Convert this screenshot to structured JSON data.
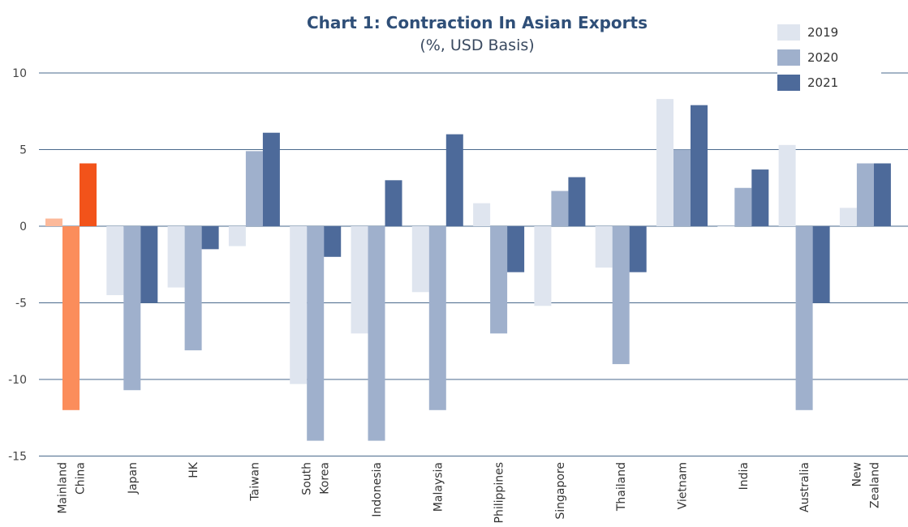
{
  "chart_data": {
    "type": "bar",
    "title": "Chart 1: Contraction In Asian Exports",
    "subtitle": "(%, USD Basis)",
    "xlabel": "",
    "ylabel": "",
    "ylim": [
      -15,
      10
    ],
    "yticks": [
      "10",
      "5",
      "0",
      "-5",
      "-10",
      "-15"
    ],
    "grid": true,
    "legend": "top-right",
    "categories": [
      [
        "Mainland",
        "China"
      ],
      [
        "Japan"
      ],
      [
        "HK"
      ],
      [
        "Taiwan"
      ],
      [
        "South",
        "Korea"
      ],
      [
        "Indonesia"
      ],
      [
        "Malaysia"
      ],
      [
        "Philippines"
      ],
      [
        "Singapore"
      ],
      [
        "Thailand"
      ],
      [
        "Vietnam"
      ],
      [
        "India"
      ],
      [
        "Australia"
      ],
      [
        "New",
        "Zealand"
      ]
    ],
    "series": [
      {
        "name": "2019",
        "color": "#dfe5ef",
        "values": [
          0.5,
          -4.5,
          -4.0,
          -1.3,
          -10.3,
          -7.0,
          -4.3,
          1.5,
          -5.2,
          -2.7,
          8.3,
          0.0,
          5.3,
          1.2
        ]
      },
      {
        "name": "2020",
        "color": "#9fb0cc",
        "values": [
          -12.0,
          -10.7,
          -8.1,
          4.9,
          -14.0,
          -14.0,
          -12.0,
          -7.0,
          2.3,
          -9.0,
          5.0,
          2.5,
          -12.0,
          4.1
        ]
      },
      {
        "name": "2021",
        "color": "#4d6a9a",
        "values": [
          4.1,
          -5.0,
          -1.5,
          6.1,
          -2.0,
          3.0,
          6.0,
          -3.0,
          3.2,
          -3.0,
          7.9,
          3.7,
          -5.0,
          4.1
        ]
      }
    ],
    "highlight": {
      "category_index": 0,
      "colors": {
        "2019": "#fcb99a",
        "2020": "#fb8d5b",
        "2021": "#f2531a"
      }
    }
  }
}
